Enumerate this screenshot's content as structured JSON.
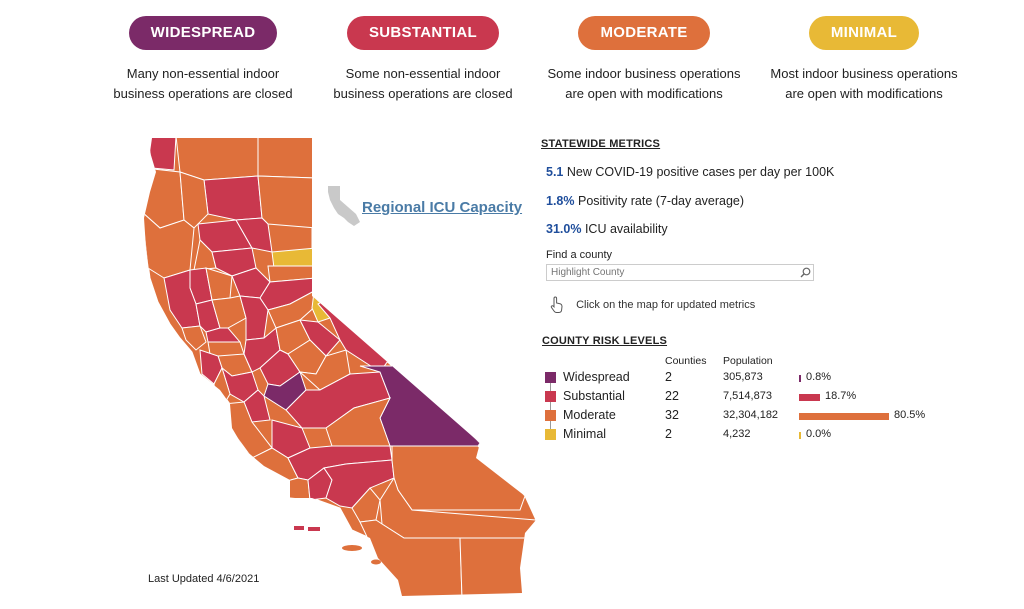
{
  "tiers": [
    {
      "label": "WIDESPREAD",
      "color": "#7b2a68",
      "desc1": "Many non-essential indoor",
      "desc2": "business operations are closed"
    },
    {
      "label": "SUBSTANTIAL",
      "color": "#c9384f",
      "desc1": "Some non-essential indoor",
      "desc2": "business operations are closed"
    },
    {
      "label": "MODERATE",
      "color": "#de703c",
      "desc1": "Some indoor business operations",
      "desc2": "are open with modifications"
    },
    {
      "label": "MINIMAL",
      "color": "#e8b936",
      "desc1": "Most indoor business operations",
      "desc2": "are open with modifications"
    }
  ],
  "map": {
    "icu_link": "Regional ICU Capacity",
    "last_updated": "Last Updated 4/6/2021",
    "county_colors": {
      "widespread": "#7b2a68",
      "substantial": "#c9384f",
      "moderate": "#de703c",
      "minimal": "#e8b936"
    }
  },
  "metrics": {
    "title": "STATEWIDE METRICS",
    "items": [
      {
        "value": "5.1",
        "label": "New COVID-19 positive cases per day per 100K"
      },
      {
        "value": "1.8%",
        "label": "Positivity rate (7-day average)"
      },
      {
        "value": "31.0%",
        "label": "ICU availability"
      }
    ]
  },
  "search": {
    "label": "Find a county",
    "placeholder": "Highlight County",
    "hint": "Click on the map for updated metrics"
  },
  "risk": {
    "title": "COUNTY RISK LEVELS",
    "col_counties": "Counties",
    "col_population": "Population",
    "rows": [
      {
        "name": "Widespread",
        "color": "#7b2a68",
        "counties": "2",
        "population": "305,873",
        "pct": "0.8%",
        "pct_value": 0.8
      },
      {
        "name": "Substantial",
        "color": "#c9384f",
        "counties": "22",
        "population": "7,514,873",
        "pct": "18.7%",
        "pct_value": 18.7
      },
      {
        "name": "Moderate",
        "color": "#de703c",
        "counties": "32",
        "population": "32,304,182",
        "pct": "80.5%",
        "pct_value": 80.5
      },
      {
        "name": "Minimal",
        "color": "#e8b936",
        "counties": "2",
        "population": "4,232",
        "pct": "0.0%",
        "pct_value": 0.0
      }
    ]
  }
}
